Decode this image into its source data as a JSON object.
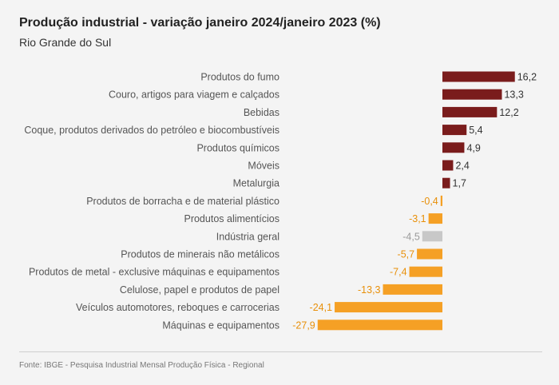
{
  "chart_data": {
    "type": "bar",
    "orientation": "horizontal",
    "title": "Produção industrial - variação janeiro 2024/janeiro 2023 (%)",
    "subtitle": "Rio Grande do Sul",
    "categories": [
      "Produtos do fumo",
      "Couro, artigos para viagem e calçados",
      "Bebidas",
      "Coque, produtos derivados do petróleo e biocombustíveis",
      "Produtos químicos",
      "Móveis",
      "Metalurgia",
      "Produtos de borracha e de material plástico",
      "Produtos alimentícios",
      "Indústria geral",
      "Produtos de minerais não metálicos",
      "Produtos de metal - exclusive máquinas e equipamentos",
      "Celulose, papel e produtos de papel",
      "Veículos automotores, reboques e carrocerias",
      "Máquinas e equipamentos"
    ],
    "values": [
      16.2,
      13.3,
      12.2,
      5.4,
      4.9,
      2.4,
      1.7,
      -0.4,
      -3.1,
      -4.5,
      -5.7,
      -7.4,
      -13.3,
      -24.1,
      -27.9
    ],
    "value_labels": [
      "16,2",
      "13,3",
      "12,2",
      "5,4",
      "4,9",
      "2,4",
      "1,7",
      "-0,4",
      "-3,1",
      "-4,5",
      "-5,7",
      "-7,4",
      "-13,3",
      "-24,1",
      "-27,9"
    ],
    "highlight": "Indústria geral",
    "colors": {
      "positive": "#7a1c1c",
      "negative": "#f5a025",
      "highlight": "#c8c8c8",
      "category_label": "#555555"
    },
    "source": "Fonte: IBGE - Pesquisa Industrial Mensal Produção Física - Regional"
  }
}
